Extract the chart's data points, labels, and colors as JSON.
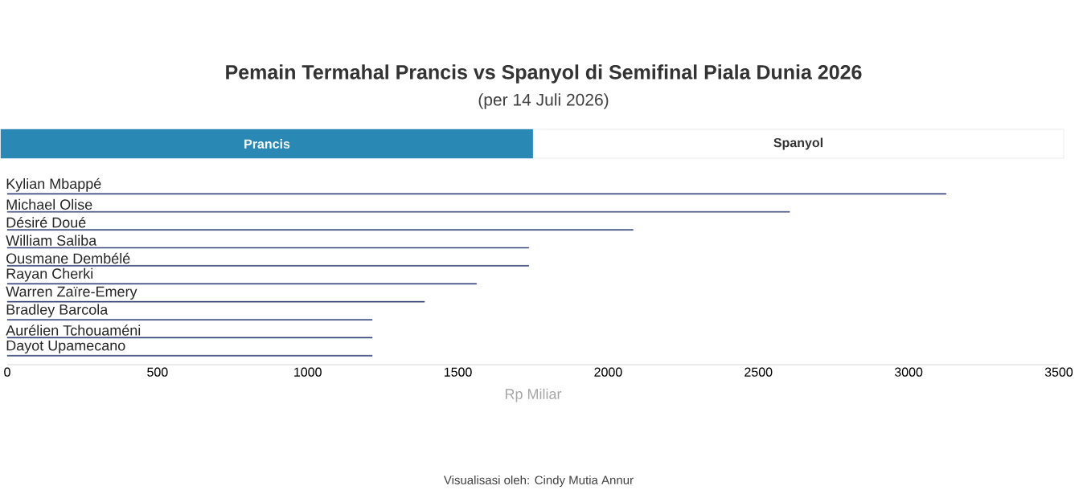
{
  "chart_data": {
    "type": "bar",
    "orientation": "horizontal",
    "title": "Pemain Termahal Prancis vs Spanyol di Semifinal Piala Dunia 2026",
    "subtitle": "(per 14 Juli 2026)",
    "xlabel": "Rp Miliar",
    "categories": [
      "Kylian Mbappé",
      "Michael Olise",
      "Désiré Doué",
      "William Saliba",
      "Ousmane Dembélé",
      "Rayan Cherki",
      "Warren Zaïre-Emery",
      "Bradley Barcola",
      "Aurélien Tchouaméni",
      "Dayot Upamecano"
    ],
    "values": [
      3125,
      2604,
      2083,
      1736,
      1736,
      1562,
      1389,
      1215,
      1215,
      1215
    ],
    "color": "#34427a",
    "xlim": [
      0,
      3500
    ],
    "xticks": [
      0,
      500,
      1000,
      1500,
      2000,
      2500,
      3000,
      3500
    ],
    "annotations": [
      "Prancis",
      "Spanyol",
      "Visualisasi oleh: Cindy Mutia Annur"
    ]
  }
}
